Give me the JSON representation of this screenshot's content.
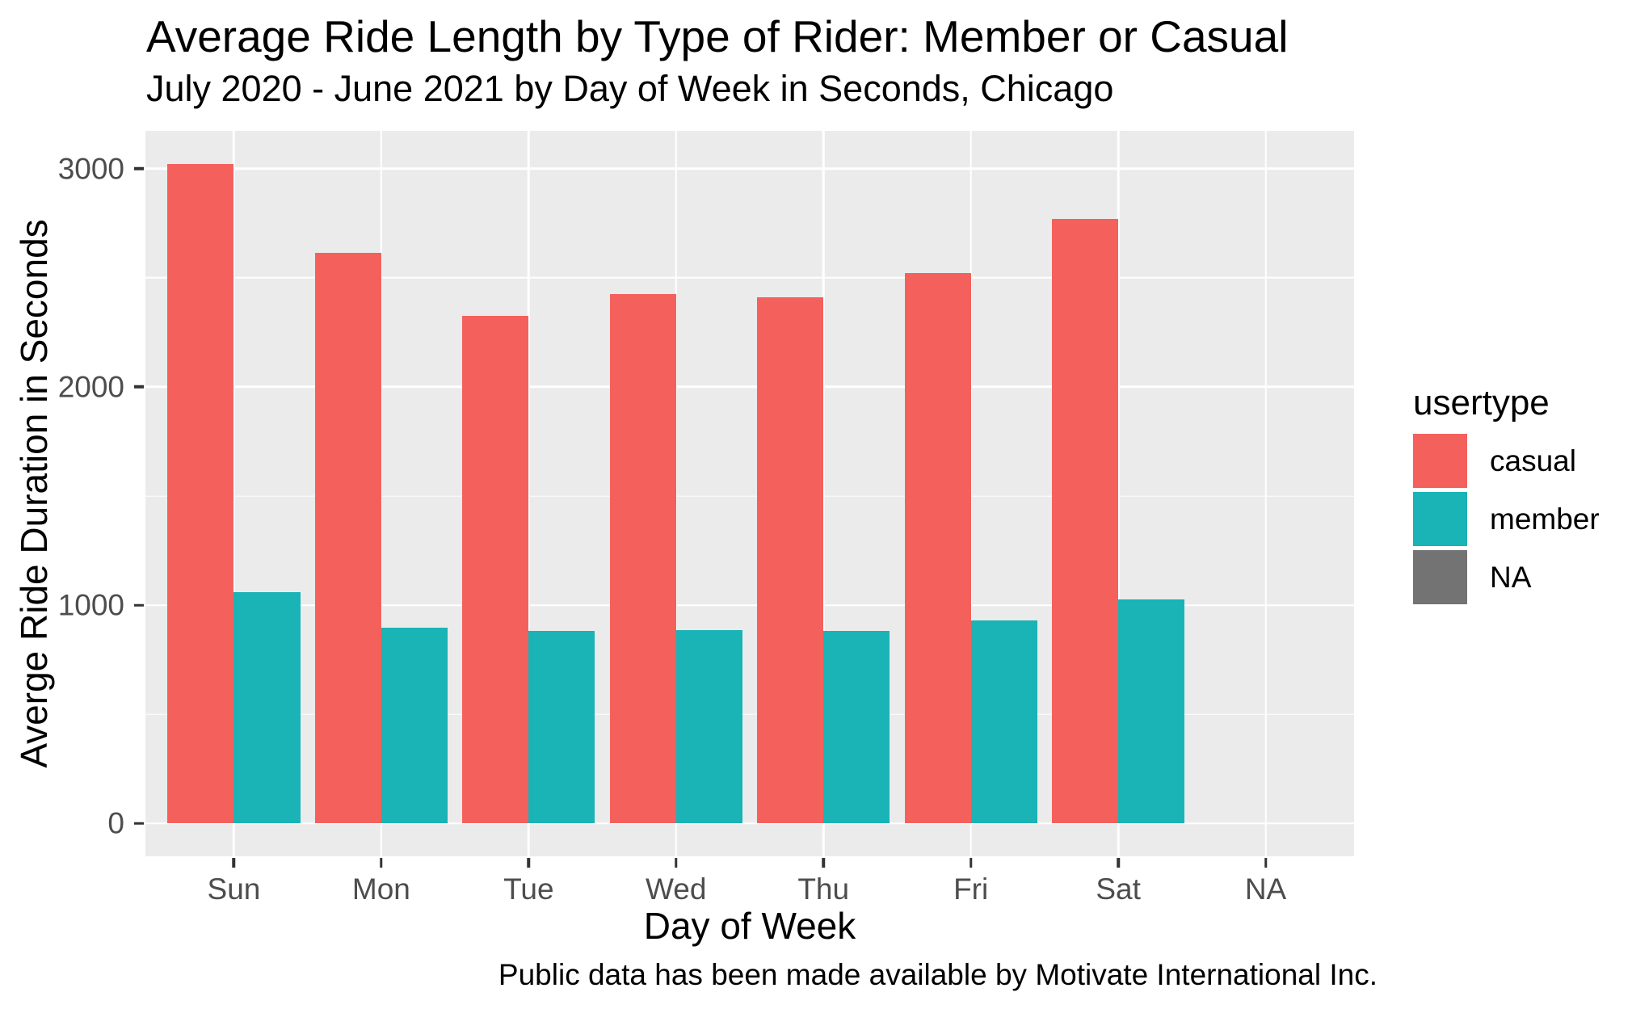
{
  "title": "Average Ride Length by Type of Rider: Member or Casual",
  "subtitle": "July 2020 - June 2021 by Day of Week in Seconds, Chicago",
  "caption": "Public data has been made available by Motivate International Inc.",
  "chart_data": {
    "type": "bar",
    "title": "Average Ride Length by Type of Rider: Member or Casual",
    "subtitle": "July 2020 - June 2021 by Day of Week in Seconds, Chicago",
    "xlabel": "Day of Week",
    "ylabel": "Averge Ride Duration in Seconds",
    "categories": [
      "Sun",
      "Mon",
      "Tue",
      "Wed",
      "Thu",
      "Fri",
      "Sat",
      "NA"
    ],
    "series": [
      {
        "name": "casual",
        "color": "#F4615D",
        "values": [
          3020,
          2615,
          2325,
          2425,
          2410,
          2520,
          2770,
          null
        ]
      },
      {
        "name": "member",
        "color": "#1AB3B6",
        "values": [
          1060,
          895,
          880,
          885,
          880,
          930,
          1025,
          null
        ]
      }
    ],
    "y_ticks": [
      0,
      1000,
      2000,
      3000
    ],
    "y_minor_ticks": [
      500,
      1500,
      2500
    ],
    "ylim": [
      -151,
      3173
    ],
    "grid": true,
    "panel_bg": "#EBEBEB",
    "gridline_color": "#FFFFFF",
    "axis_text_color": "#4D4D4D",
    "legend": {
      "title": "usertype",
      "position": "right",
      "entries": [
        {
          "label": "casual",
          "color": "#F4615D"
        },
        {
          "label": "member",
          "color": "#1AB3B6"
        },
        {
          "label": "NA",
          "color": "#737373"
        }
      ]
    }
  }
}
